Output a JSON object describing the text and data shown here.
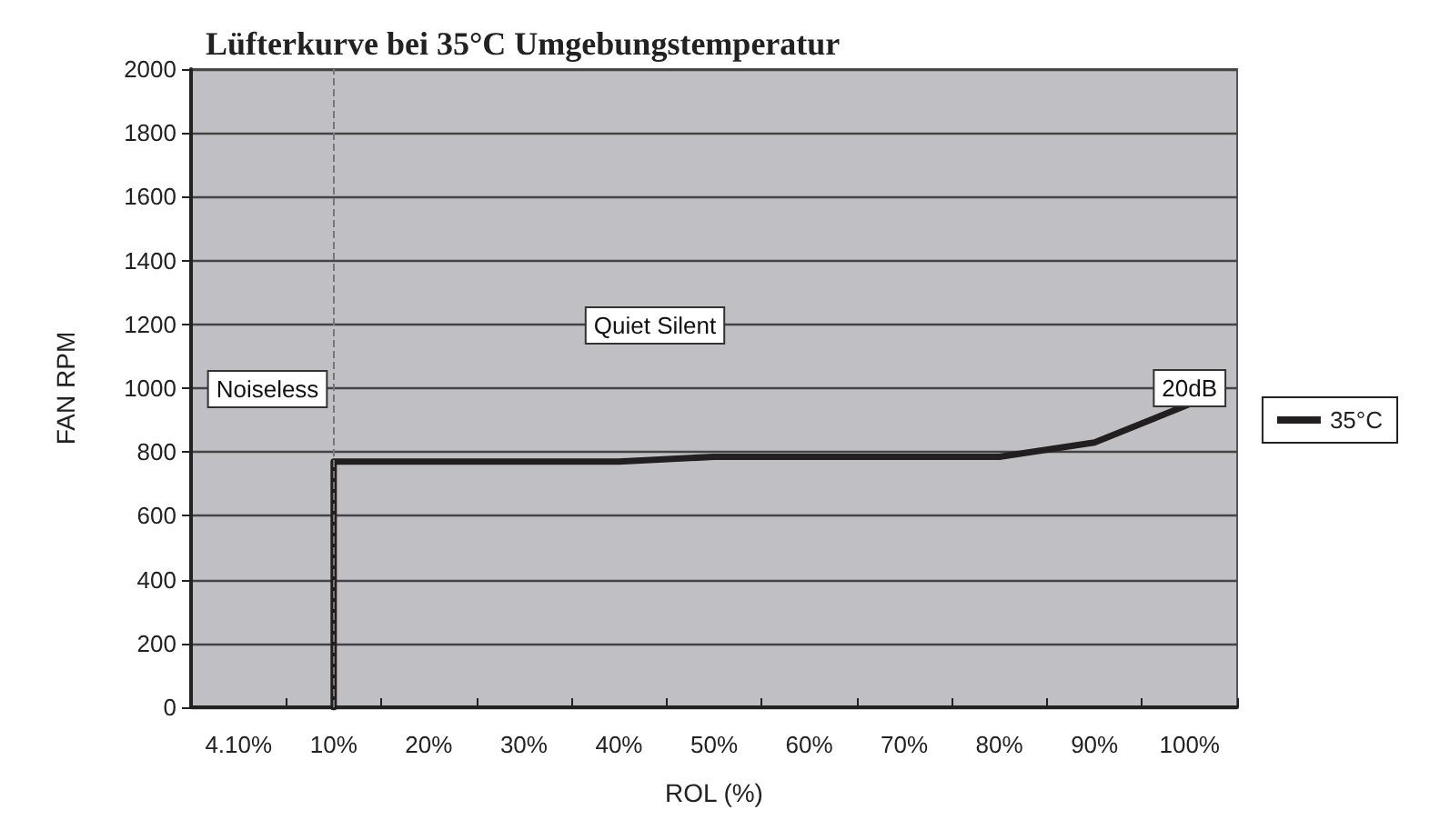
{
  "chart_data": {
    "type": "line",
    "title": "Lüfterkurve bei 35°C Umgebungstemperatur",
    "xlabel": "ROL (%)",
    "ylabel": "FAN RPM",
    "categories": [
      "4.10%",
      "10%",
      "20%",
      "30%",
      "40%",
      "50%",
      "60%",
      "70%",
      "80%",
      "90%",
      "100%"
    ],
    "series": [
      {
        "name": "35°C",
        "color": "#231f20",
        "x": [
          "10%",
          "10%",
          "40%",
          "50%",
          "80%",
          "90%",
          "100%"
        ],
        "values": [
          0,
          770,
          770,
          785,
          785,
          830,
          950
        ]
      }
    ],
    "ylim": [
      0,
      2000
    ],
    "yticks": [
      0,
      200,
      400,
      600,
      800,
      1000,
      1200,
      1400,
      1600,
      1800,
      2000
    ],
    "grid": "y",
    "legend": "right",
    "marker": "none",
    "line_style": "solid",
    "ref_lines": [
      {
        "axis": "x",
        "value": "10%",
        "color": "#777777",
        "line_style": "dashed"
      }
    ],
    "annotations": [
      "Noiseless",
      "Quiet Silent",
      {
        "text": "20dB",
        "x": "100%",
        "y": 1000
      }
    ]
  }
}
